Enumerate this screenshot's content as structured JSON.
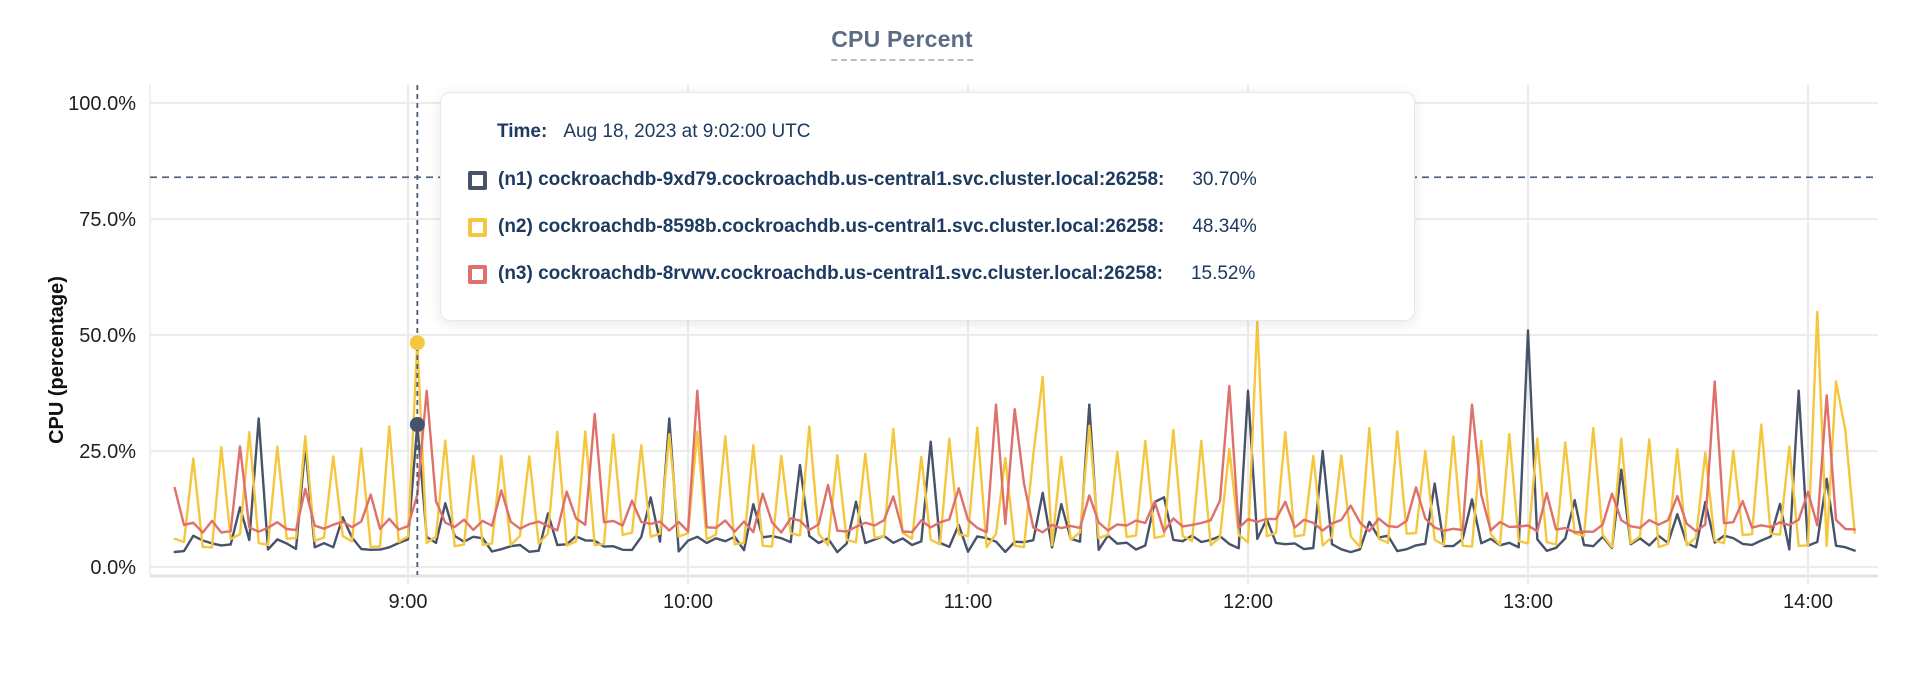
{
  "title": "CPU Percent",
  "tooltip": {
    "time_label": "Time:",
    "time_value": "Aug 18, 2023 at 9:02:00 UTC",
    "rows": [
      {
        "label": "(n1) cockroachdb-9xd79.cockroachdb.us-central1.svc.cluster.local:26258:",
        "value": "30.70%",
        "color": "#47536a"
      },
      {
        "label": "(n2) cockroachdb-8598b.cockroachdb.us-central1.svc.cluster.local:26258:",
        "value": "48.34%",
        "color": "#f5c73e"
      },
      {
        "label": "(n3) cockroachdb-8rvwv.cockroachdb.us-central1.svc.cluster.local:26258:",
        "value": "15.52%",
        "color": "#df706b"
      }
    ]
  },
  "chart_data": {
    "type": "line",
    "title": "CPU Percent",
    "ylabel": "CPU (percentage)",
    "ylim": [
      0,
      100
    ],
    "grid": true,
    "x_range_minutes": [
      -50,
      310
    ],
    "sample_step_minutes": 2,
    "y_ticks": [
      {
        "value": 100,
        "label": "100.0%"
      },
      {
        "value": 75,
        "label": "75.0%"
      },
      {
        "value": 50,
        "label": "50.0%"
      },
      {
        "value": 25,
        "label": "25.0%"
      },
      {
        "value": 0,
        "label": "0.0%"
      }
    ],
    "x_ticks": [
      {
        "minutes": 0,
        "label": "9:00"
      },
      {
        "minutes": 60,
        "label": "10:00"
      },
      {
        "minutes": 120,
        "label": "11:00"
      },
      {
        "minutes": 180,
        "label": "12:00"
      },
      {
        "minutes": 240,
        "label": "13:00"
      },
      {
        "minutes": 300,
        "label": "14:00"
      }
    ],
    "threshold": {
      "value": 84,
      "color": "#566880",
      "style": "dashed"
    },
    "crosshair": {
      "time_minutes": 2,
      "time_label": "Aug 18, 2023 at 9:02:00 UTC",
      "color": "#4a5d73",
      "dots": [
        {
          "series": "n1",
          "value": 30.7
        },
        {
          "series": "n2",
          "value": 48.34
        }
      ]
    },
    "series": [
      {
        "id": "n1",
        "name": "(n1) cockroachdb-9xd79.cockroachdb.us-central1.svc.cluster.local:26258",
        "color": "#47536a",
        "seed": 7,
        "baseline": [
          3.2,
          6.8
        ],
        "periodic_spike": {
          "period": 22,
          "phase": 8,
          "range": [
            9,
            16
          ]
        },
        "spikes": [
          [
            -32,
            32
          ],
          [
            -22,
            26
          ],
          [
            2,
            30.7
          ],
          [
            52,
            15
          ],
          [
            56,
            32
          ],
          [
            84,
            22
          ],
          [
            112,
            27
          ],
          [
            136,
            16
          ],
          [
            146,
            35
          ],
          [
            160,
            14
          ],
          [
            180,
            38
          ],
          [
            196,
            25
          ],
          [
            220,
            18
          ],
          [
            240,
            51
          ],
          [
            260,
            21
          ],
          [
            278,
            14
          ],
          [
            298,
            38
          ],
          [
            304,
            19
          ]
        ],
        "value_at_crosshair": 30.7
      },
      {
        "id": "n2",
        "name": "(n2) cockroachdb-8598b.cockroachdb.us-central1.svc.cluster.local:26258",
        "color": "#f5c73e",
        "seed": 13,
        "baseline": [
          4.2,
          7.5
        ],
        "periodic_spike": {
          "period": 6,
          "phase": 2,
          "range": [
            23,
            31
          ]
        },
        "spikes": [
          [
            2,
            48.34
          ],
          [
            136,
            41
          ],
          [
            182,
            53
          ],
          [
            302,
            55
          ],
          [
            306,
            40
          ]
        ],
        "value_at_crosshair": 48.34
      },
      {
        "id": "n3",
        "name": "(n3) cockroachdb-8rvwv.cockroachdb.us-central1.svc.cluster.local:26258",
        "color": "#df706b",
        "seed": 99,
        "baseline": [
          7.4,
          10.5
        ],
        "periodic_spike": {
          "period": 14,
          "phase": 6,
          "range": [
            13,
            18
          ]
        },
        "spikes": [
          [
            -36,
            26
          ],
          [
            2,
            15.52
          ],
          [
            4,
            38
          ],
          [
            40,
            33
          ],
          [
            62,
            38
          ],
          [
            126,
            35
          ],
          [
            130,
            34
          ],
          [
            176,
            39
          ],
          [
            228,
            35
          ],
          [
            280,
            40
          ],
          [
            304,
            37
          ]
        ],
        "value_at_crosshair": 15.52
      }
    ]
  }
}
